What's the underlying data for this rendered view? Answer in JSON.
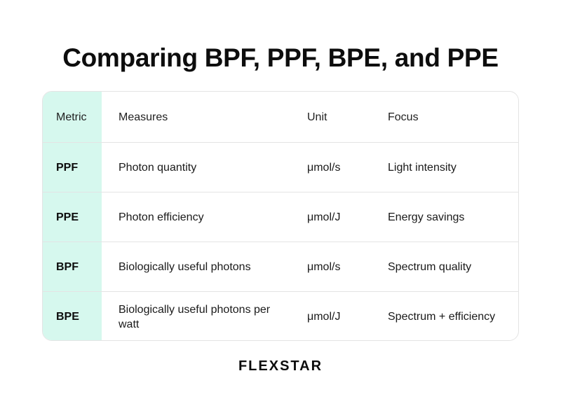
{
  "title": "Comparing BPF, PPF, BPE, and PPE",
  "table": {
    "headers": {
      "metric": "Metric",
      "measures": "Measures",
      "unit": "Unit",
      "focus": "Focus"
    },
    "rows": [
      {
        "metric": "PPF",
        "measures": "Photon quantity",
        "unit": "μmol/s",
        "focus": "Light intensity"
      },
      {
        "metric": "PPE",
        "measures": "Photon efficiency",
        "unit": "μmol/J",
        "focus": "Energy savings"
      },
      {
        "metric": "BPF",
        "measures": "Biologically useful photons",
        "unit": "μmol/s",
        "focus": "Spectrum quality"
      },
      {
        "metric": "BPE",
        "measures": "Biologically useful photons per watt",
        "unit": "μmol/J",
        "focus": "Spectrum + efficiency"
      }
    ]
  },
  "colors": {
    "metric_column_bg": "#d6f8ee",
    "border": "#e4e4e4",
    "text": "#111111"
  },
  "brand": {
    "logo_text": "FLEXSTAR"
  }
}
